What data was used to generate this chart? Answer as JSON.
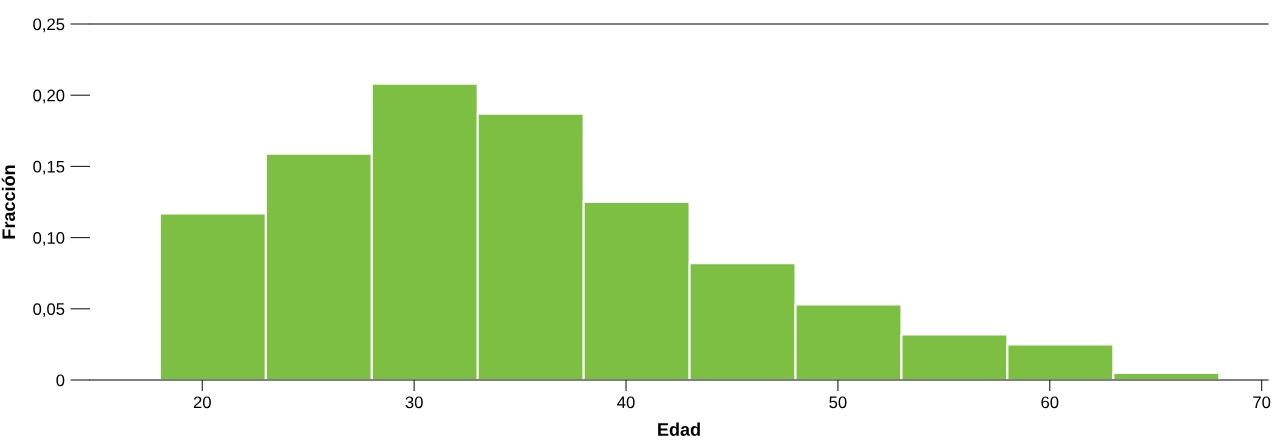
{
  "chart_data": {
    "type": "histogram",
    "xlabel": "Edad",
    "ylabel": "Fracción",
    "bins": [
      18,
      23,
      28,
      33,
      38,
      43,
      48,
      53,
      58,
      63,
      68
    ],
    "values": [
      0.117,
      0.159,
      0.208,
      0.187,
      0.125,
      0.082,
      0.053,
      0.032,
      0.025,
      0.005
    ],
    "color": "#7cbf43",
    "xlim": [
      14.7,
      70.3
    ],
    "xticks": [
      20,
      30,
      40,
      50,
      60,
      70
    ],
    "ylim": [
      0,
      0.25
    ],
    "yticks": [
      0,
      {
        "value": 0.05,
        "label": "0,05"
      },
      {
        "value": 0.1,
        "label": "0,10"
      },
      {
        "value": 0.15,
        "label": "0,15"
      },
      {
        "value": 0.2,
        "label": "0,20"
      },
      {
        "value": 0.25,
        "label": "0,25"
      }
    ],
    "grid": false
  }
}
